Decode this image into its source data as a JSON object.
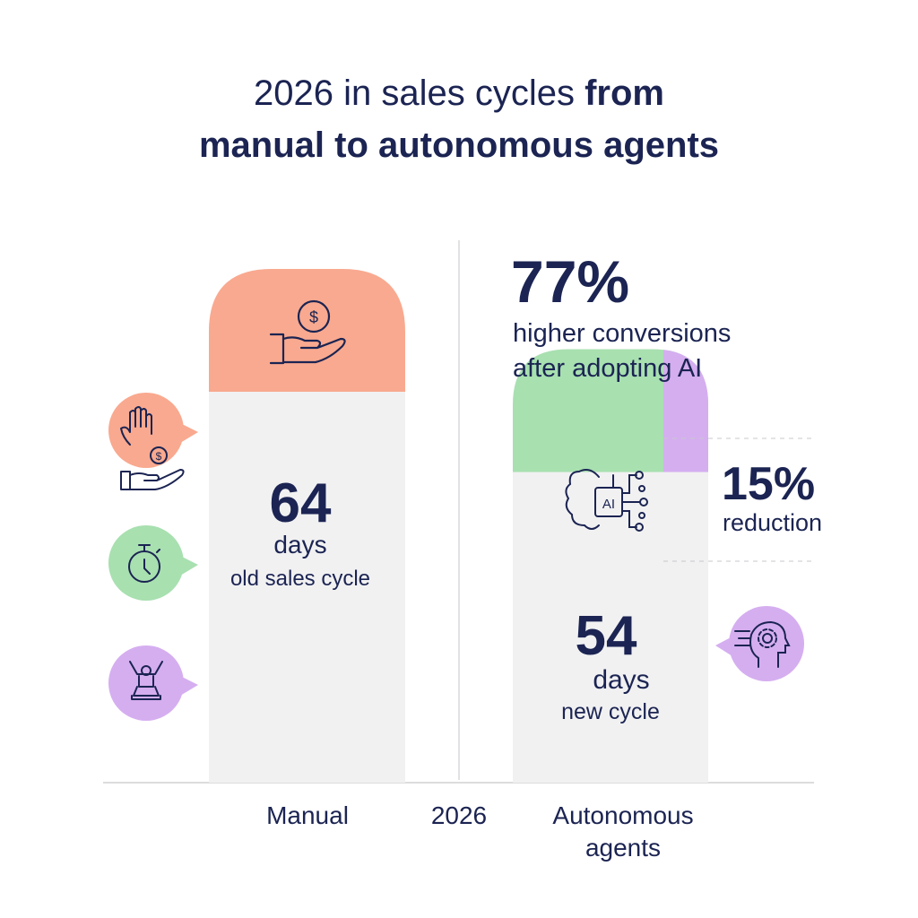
{
  "title": {
    "line1_regular": "2026 in sales cycles",
    "line1_bold": "from",
    "line2": "manual to autonomous agents"
  },
  "left": {
    "value": "64",
    "unit": "days",
    "caption": "old sales cycle",
    "label": "Manual"
  },
  "center": {
    "label": "2026"
  },
  "right": {
    "value": "54",
    "unit": "days",
    "caption": "new cycle",
    "label_line1": "Autonomous",
    "label_line2": "agents",
    "ai_chip_text": "AI"
  },
  "stat_conversions": {
    "value": "77%",
    "line1": "higher conversions",
    "line2": "after adopting AI"
  },
  "stat_reduction": {
    "value": "15%",
    "label": "reduction"
  },
  "colors": {
    "text": "#1b2452",
    "peach": "#f9a98f",
    "green": "#a8e0b0",
    "purple": "#d5aef0",
    "bar_gray": "#f1f1f2"
  },
  "icons": [
    "hand-coin-icon",
    "hand-stop-coin-icon",
    "stopwatch-icon",
    "person-celebrate-icon",
    "ai-brain-icon",
    "head-gear-icon"
  ],
  "chart_data": {
    "type": "bar",
    "categories": [
      "Manual",
      "Autonomous agents"
    ],
    "values": [
      64,
      54
    ],
    "unit": "days",
    "annotations": [
      "77% higher conversions after adopting AI",
      "15% reduction"
    ],
    "grid": false
  }
}
